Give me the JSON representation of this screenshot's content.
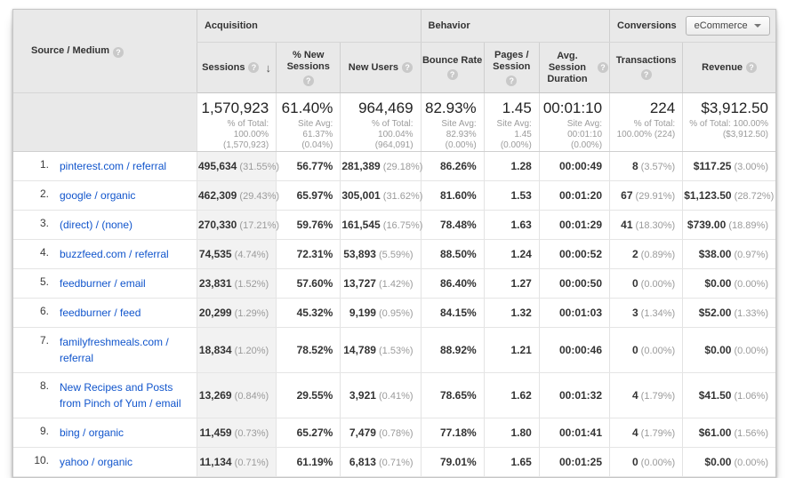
{
  "header": {
    "dimension": {
      "label": "Source / Medium"
    },
    "groups": [
      {
        "label": "Acquisition"
      },
      {
        "label": "Behavior"
      },
      {
        "label": "Conversions"
      }
    ],
    "conversions_dropdown": {
      "value": "eCommerce"
    },
    "columns": [
      {
        "label": "Sessions",
        "sorted": "descending"
      },
      {
        "label": "% New\nSessions"
      },
      {
        "label": "New Users"
      },
      {
        "label": "Bounce Rate"
      },
      {
        "label": "Pages /\nSession"
      },
      {
        "label": "Avg. Session\nDuration"
      },
      {
        "label": "Transactions"
      },
      {
        "label": "Revenue"
      }
    ]
  },
  "totals": {
    "sessions": {
      "value": "1,570,923",
      "sub": "% of Total:\n100.00%\n(1,570,923)"
    },
    "new_sessions": {
      "value": "61.40%",
      "sub": "Site Avg:\n61.37%\n(0.04%)"
    },
    "new_users": {
      "value": "964,469",
      "sub": "% of Total:\n100.04% (964,091)"
    },
    "bounce_rate": {
      "value": "82.93%",
      "sub": "Site Avg:\n82.93%\n(0.00%)"
    },
    "pages_session": {
      "value": "1.45",
      "sub": "Site Avg:\n1.45\n(0.00%)"
    },
    "avg_duration": {
      "value": "00:01:10",
      "sub": "Site Avg:\n00:01:10\n(0.00%)"
    },
    "transactions": {
      "value": "224",
      "sub": "% of Total:\n100.00% (224)"
    },
    "revenue": {
      "value": "$3,912.50",
      "sub": "% of Total: 100.00%\n($3,912.50)"
    }
  },
  "rows": [
    {
      "rank": "1.",
      "source": "pinterest.com / referral",
      "sessions": "495,634",
      "sessions_pct": "(31.55%)",
      "new_sessions_pct": "56.77%",
      "new_users": "281,389",
      "new_users_pct": "(29.18%)",
      "bounce_rate": "86.26%",
      "pages_session": "1.28",
      "avg_duration": "00:00:49",
      "transactions": "8",
      "transactions_pct": "(3.57%)",
      "revenue": "$117.25",
      "revenue_pct": "(3.00%)"
    },
    {
      "rank": "2.",
      "source": "google / organic",
      "sessions": "462,309",
      "sessions_pct": "(29.43%)",
      "new_sessions_pct": "65.97%",
      "new_users": "305,001",
      "new_users_pct": "(31.62%)",
      "bounce_rate": "81.60%",
      "pages_session": "1.53",
      "avg_duration": "00:01:20",
      "transactions": "67",
      "transactions_pct": "(29.91%)",
      "revenue": "$1,123.50",
      "revenue_pct": "(28.72%)"
    },
    {
      "rank": "3.",
      "source": "(direct) / (none)",
      "sessions": "270,330",
      "sessions_pct": "(17.21%)",
      "new_sessions_pct": "59.76%",
      "new_users": "161,545",
      "new_users_pct": "(16.75%)",
      "bounce_rate": "78.48%",
      "pages_session": "1.63",
      "avg_duration": "00:01:29",
      "transactions": "41",
      "transactions_pct": "(18.30%)",
      "revenue": "$739.00",
      "revenue_pct": "(18.89%)"
    },
    {
      "rank": "4.",
      "source": "buzzfeed.com / referral",
      "sessions": "74,535",
      "sessions_pct": "(4.74%)",
      "new_sessions_pct": "72.31%",
      "new_users": "53,893",
      "new_users_pct": "(5.59%)",
      "bounce_rate": "88.50%",
      "pages_session": "1.24",
      "avg_duration": "00:00:52",
      "transactions": "2",
      "transactions_pct": "(0.89%)",
      "revenue": "$38.00",
      "revenue_pct": "(0.97%)"
    },
    {
      "rank": "5.",
      "source": "feedburner / email",
      "sessions": "23,831",
      "sessions_pct": "(1.52%)",
      "new_sessions_pct": "57.60%",
      "new_users": "13,727",
      "new_users_pct": "(1.42%)",
      "bounce_rate": "86.40%",
      "pages_session": "1.27",
      "avg_duration": "00:00:50",
      "transactions": "0",
      "transactions_pct": "(0.00%)",
      "revenue": "$0.00",
      "revenue_pct": "(0.00%)"
    },
    {
      "rank": "6.",
      "source": "feedburner / feed",
      "sessions": "20,299",
      "sessions_pct": "(1.29%)",
      "new_sessions_pct": "45.32%",
      "new_users": "9,199",
      "new_users_pct": "(0.95%)",
      "bounce_rate": "84.15%",
      "pages_session": "1.32",
      "avg_duration": "00:01:03",
      "transactions": "3",
      "transactions_pct": "(1.34%)",
      "revenue": "$52.00",
      "revenue_pct": "(1.33%)"
    },
    {
      "rank": "7.",
      "source": "familyfreshmeals.com / referral",
      "sessions": "18,834",
      "sessions_pct": "(1.20%)",
      "new_sessions_pct": "78.52%",
      "new_users": "14,789",
      "new_users_pct": "(1.53%)",
      "bounce_rate": "88.92%",
      "pages_session": "1.21",
      "avg_duration": "00:00:46",
      "transactions": "0",
      "transactions_pct": "(0.00%)",
      "revenue": "$0.00",
      "revenue_pct": "(0.00%)"
    },
    {
      "rank": "8.",
      "source": "New Recipes and Posts from Pinch of Yum / email",
      "sessions": "13,269",
      "sessions_pct": "(0.84%)",
      "new_sessions_pct": "29.55%",
      "new_users": "3,921",
      "new_users_pct": "(0.41%)",
      "bounce_rate": "78.65%",
      "pages_session": "1.62",
      "avg_duration": "00:01:32",
      "transactions": "4",
      "transactions_pct": "(1.79%)",
      "revenue": "$41.50",
      "revenue_pct": "(1.06%)"
    },
    {
      "rank": "9.",
      "source": "bing / organic",
      "sessions": "11,459",
      "sessions_pct": "(0.73%)",
      "new_sessions_pct": "65.27%",
      "new_users": "7,479",
      "new_users_pct": "(0.78%)",
      "bounce_rate": "77.18%",
      "pages_session": "1.80",
      "avg_duration": "00:01:41",
      "transactions": "4",
      "transactions_pct": "(1.79%)",
      "revenue": "$61.00",
      "revenue_pct": "(1.56%)"
    },
    {
      "rank": "10.",
      "source": "yahoo / organic",
      "sessions": "11,134",
      "sessions_pct": "(0.71%)",
      "new_sessions_pct": "61.19%",
      "new_users": "6,813",
      "new_users_pct": "(0.71%)",
      "bounce_rate": "79.01%",
      "pages_session": "1.65",
      "avg_duration": "00:01:25",
      "transactions": "0",
      "transactions_pct": "(0.00%)",
      "revenue": "$0.00",
      "revenue_pct": "(0.00%)"
    }
  ],
  "colors": {
    "link": "#1155cc",
    "header_bg": "#e9e9e9",
    "sorted_column_bg": "#f2f2f2",
    "value_text": "#333333",
    "muted_text": "#9b9b9b"
  }
}
